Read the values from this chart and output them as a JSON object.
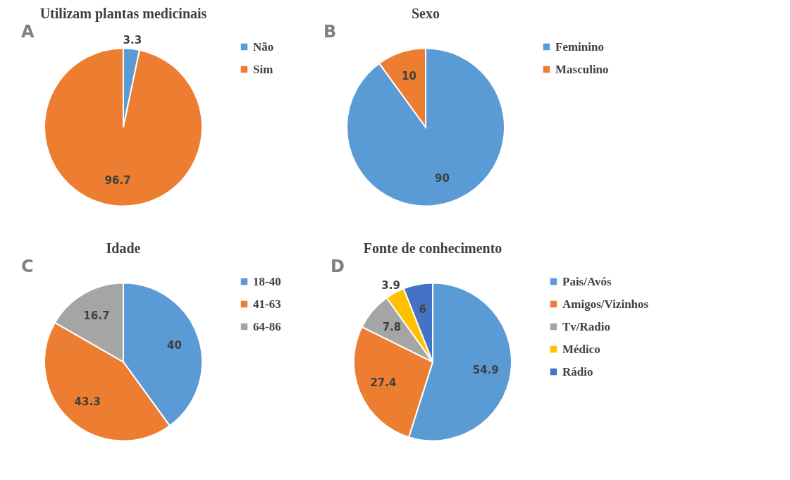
{
  "chart_data": [
    {
      "type": "pie",
      "title": "Utilizam plantas medicinais",
      "annotations": [
        "A"
      ],
      "categories": [
        "Não",
        "Sim"
      ],
      "values": [
        3.3,
        96.7
      ],
      "colors": [
        "#5b9bd5",
        "#ed7d31"
      ],
      "data_labels": true,
      "legend": "right"
    },
    {
      "type": "pie",
      "title": "Sexo",
      "annotations": [
        "B"
      ],
      "categories": [
        "Feminino",
        "Masculino"
      ],
      "values": [
        90,
        10
      ],
      "colors": [
        "#5b9bd5",
        "#ed7d31"
      ],
      "data_labels": true,
      "legend": "right"
    },
    {
      "type": "pie",
      "title": "Idade",
      "annotations": [
        "C"
      ],
      "categories": [
        "18-40",
        "41-63",
        "64-86"
      ],
      "values": [
        40,
        43.3,
        16.7
      ],
      "colors": [
        "#5b9bd5",
        "#ed7d31",
        "#a5a5a5"
      ],
      "data_labels": true,
      "legend": "right"
    },
    {
      "type": "pie",
      "title": "Fonte de conhecimento",
      "annotations": [
        "D"
      ],
      "categories": [
        "Pais/Avós",
        "Amigos/Vizinhos",
        "Tv/Radio",
        "Médico",
        "Rádio"
      ],
      "values": [
        54.9,
        27.4,
        7.8,
        3.9,
        6
      ],
      "colors": [
        "#5b9bd5",
        "#ed7d31",
        "#a5a5a5",
        "#ffc000",
        "#4472c4"
      ],
      "data_labels": true,
      "legend": "right"
    }
  ]
}
